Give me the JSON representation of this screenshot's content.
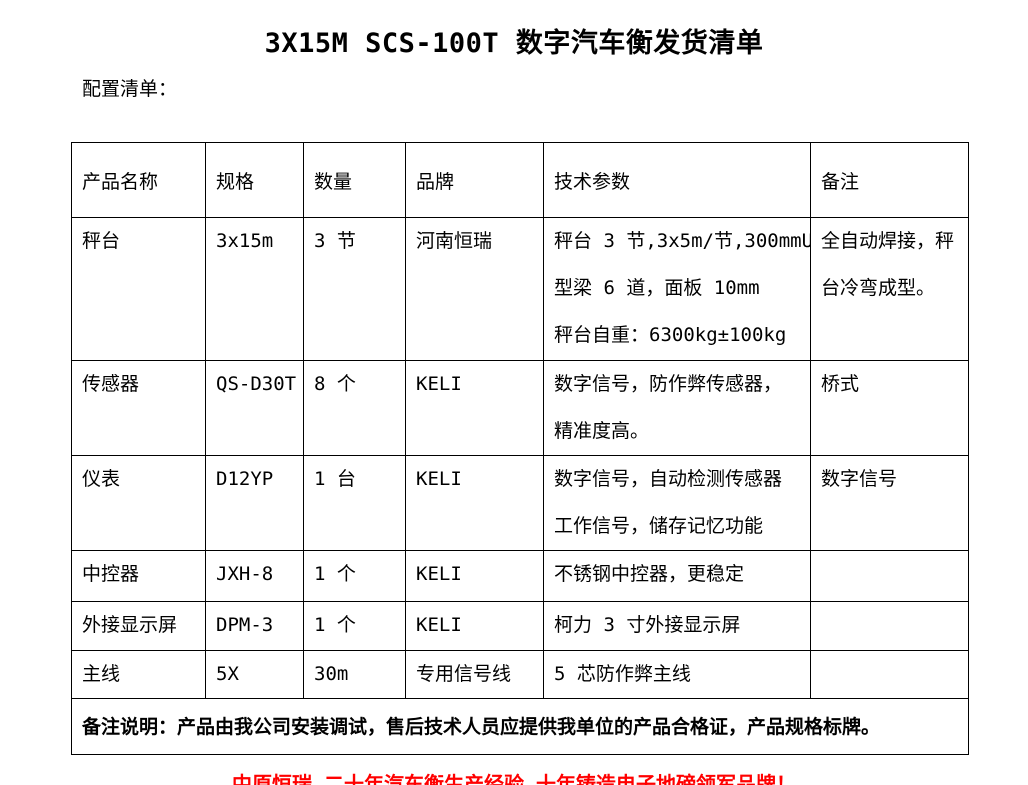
{
  "page": {
    "title": "3X15M SCS-100T 数字汽车衡发货清单",
    "section_label": "配置清单：",
    "footer_slogan": "中原恒瑞 二十年汽车衡生产经验 十年铸造电子地磅领军品牌！",
    "colors": {
      "text": "#000000",
      "border": "#000000",
      "background": "#ffffff",
      "footer_accent": "#ff0000"
    }
  },
  "table": {
    "headers": [
      "产品名称",
      "规格",
      "数量",
      "品牌",
      "技术参数",
      "备注"
    ],
    "rows": [
      {
        "name": "秤台",
        "spec": "3x15m",
        "qty": "3 节",
        "brand": "河南恒瑞",
        "params_lines": [
          "秤台 3 节,3x5m/节,300mmU",
          "型梁 6 道，面板 10mm",
          "秤台自重：6300kg±100kg"
        ],
        "note_lines": [
          "全自动焊接，秤",
          "台冷弯成型。"
        ]
      },
      {
        "name": "传感器",
        "spec": "QS-D30T",
        "qty": "8 个",
        "brand": "KELI",
        "params_lines": [
          "数字信号，防作弊传感器，",
          "精准度高。"
        ],
        "note_lines": [
          "桥式"
        ]
      },
      {
        "name": "仪表",
        "spec": "D12YP",
        "qty": "1 台",
        "brand": "KELI",
        "params_lines": [
          "数字信号，自动检测传感器",
          "工作信号，储存记忆功能"
        ],
        "note_lines": [
          "数字信号"
        ]
      },
      {
        "name": "中控器",
        "spec": "JXH-8",
        "qty": "1 个",
        "brand": "KELI",
        "params_lines": [
          "不锈钢中控器，更稳定"
        ],
        "note_lines": []
      },
      {
        "name": "外接显示屏",
        "spec": "DPM-3",
        "qty": "1 个",
        "brand": "KELI",
        "params_lines": [
          "柯力 3 寸外接显示屏"
        ],
        "note_lines": []
      },
      {
        "name": "主线",
        "spec": "5X",
        "qty": "30m",
        "brand": "专用信号线",
        "params_lines": [
          "5 芯防作弊主线"
        ],
        "note_lines": []
      }
    ],
    "footnote": "备注说明：产品由我公司安装调试，售后技术人员应提供我单位的产品合格证，产品规格标牌。"
  }
}
